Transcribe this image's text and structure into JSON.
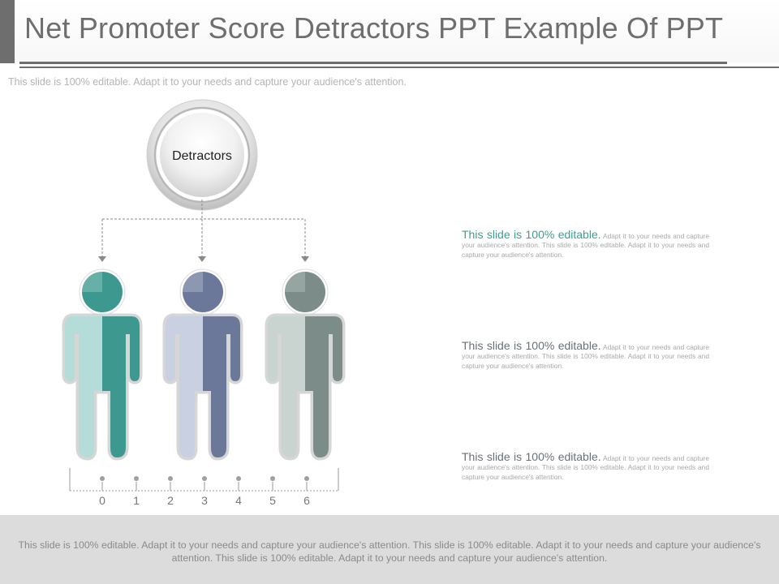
{
  "slide": {
    "title": "Net Promoter Score Detractors PPT Example Of PPT",
    "subtitle": "This slide is 100% editable. Adapt it to your needs and capture your audience's attention."
  },
  "diagram": {
    "root_label": "Detractors",
    "people": [
      {
        "color_light": "#b4dcd8",
        "color_dark": "#3d9990"
      },
      {
        "color_light": "#c9d0e2",
        "color_dark": "#6c7899"
      },
      {
        "color_light": "#c9d3cf",
        "color_dark": "#7c8c88"
      }
    ],
    "scale": {
      "ticks": [
        "0",
        "1",
        "2",
        "3",
        "4",
        "5",
        "6"
      ]
    }
  },
  "descriptions": [
    {
      "lead": "This slide is 100% editable.",
      "body": "Adapt it to your needs and capture your audience's attention. This slide is 100% editable. Adapt it to your needs and capture your audience's attention."
    },
    {
      "lead": "This slide is 100% editable.",
      "body": "Adapt it to your needs and capture your audience's attention. This slide is 100% editable. Adapt it to your needs and capture your audience's attention."
    },
    {
      "lead": "This slide is 100% editable.",
      "body": "Adapt it to your needs and capture your audience's attention. This slide is 100% editable. Adapt it to your needs and capture your audience's attention."
    }
  ],
  "footer": {
    "text": "This slide is 100% editable. Adapt it to your needs and capture your audience's attention. This slide is 100% editable. Adapt it to your needs and capture your audience's attention. This slide is 100% editable. Adapt it to your needs and capture your audience's attention."
  }
}
